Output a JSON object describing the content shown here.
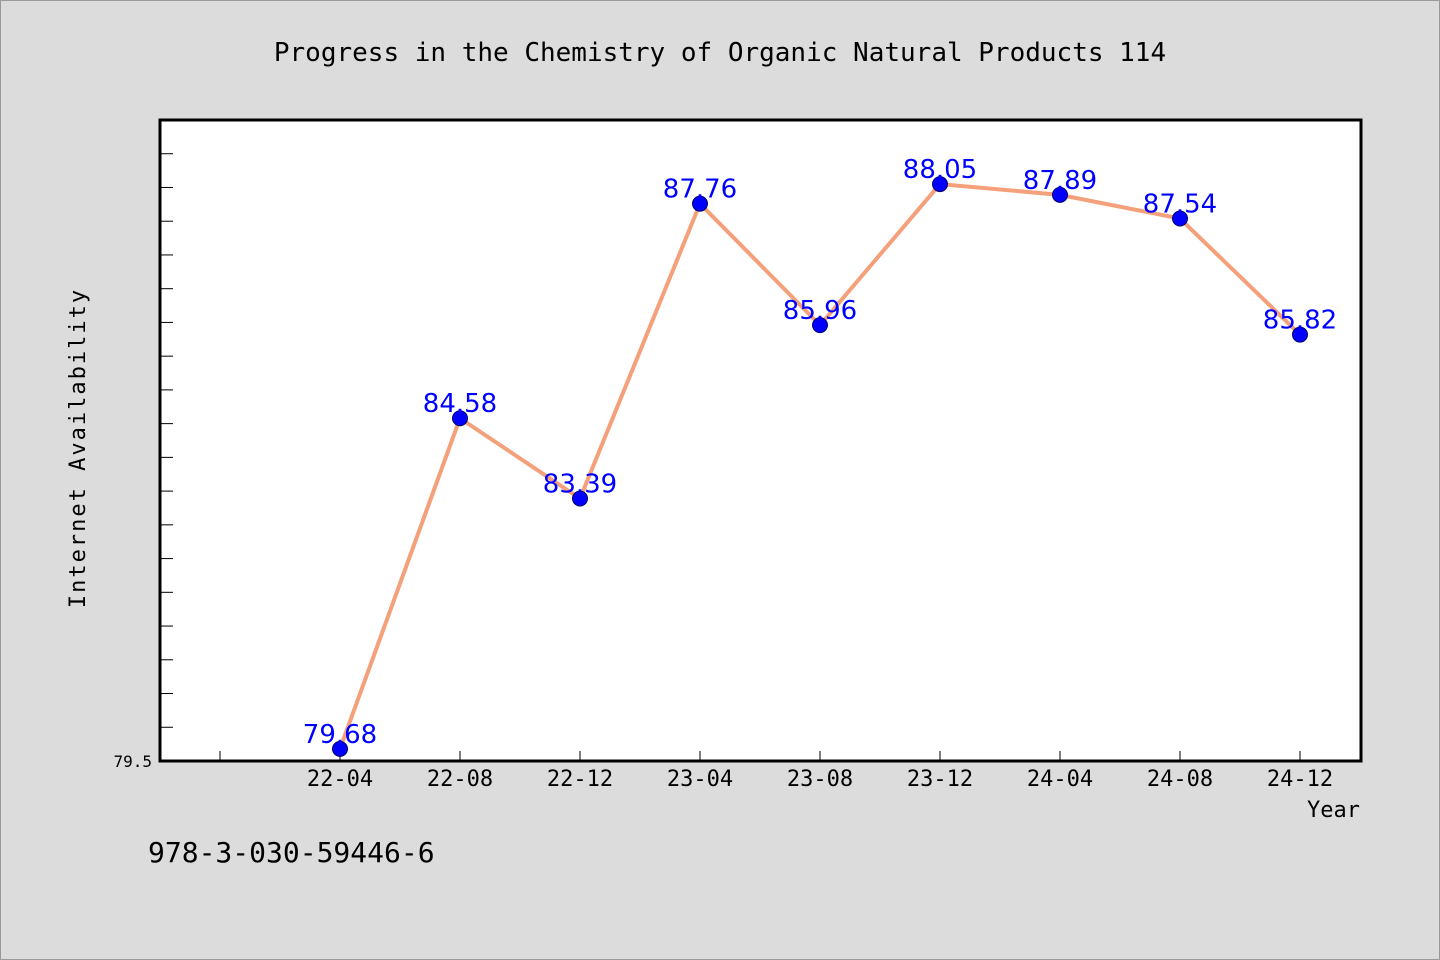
{
  "chart_data": {
    "type": "line",
    "title": "Progress in the Chemistry of Organic Natural Products 114",
    "xlabel": "Year",
    "ylabel": "Internet Availability",
    "categories": [
      "22-04",
      "22-08",
      "22-12",
      "23-04",
      "23-08",
      "23-12",
      "24-04",
      "24-08",
      "24-12"
    ],
    "series": [
      {
        "values": [
          79.68,
          84.58,
          83.39,
          87.76,
          85.96,
          88.05,
          87.89,
          87.54,
          85.82
        ]
      }
    ],
    "ylim": [
      79.5,
      89.0
    ],
    "ytick_labels": [
      "79.5"
    ],
    "line_color": "#f4a07a",
    "marker_color": "#0000ff",
    "label_color": "#0000ff",
    "grid": false
  },
  "footer": {
    "isbn": "978-3-030-59446-6"
  }
}
